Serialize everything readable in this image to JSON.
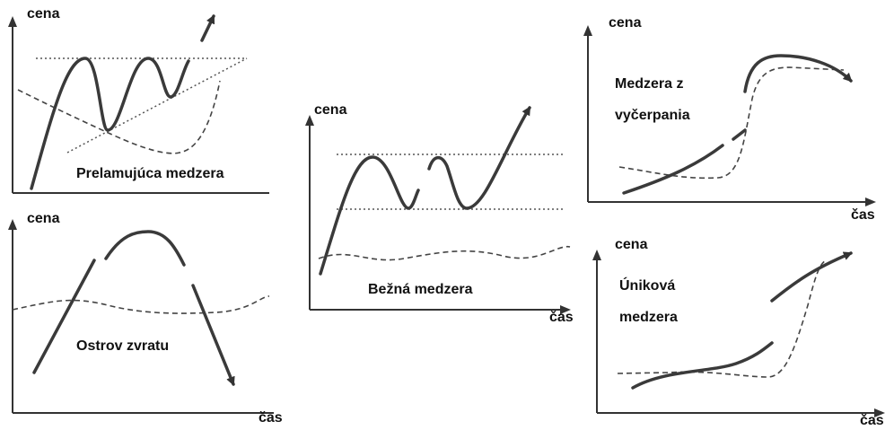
{
  "panels": [
    {
      "y_label": "cena",
      "title_lines": [
        "Prelamujúca medzera"
      ]
    },
    {
      "y_label": "cena",
      "x_label": "čas",
      "title_lines": [
        "Ostrov zvratu"
      ]
    },
    {
      "y_label": "cena",
      "x_label": "čas",
      "title_lines": [
        "Bežná medzera"
      ]
    },
    {
      "y_label": "cena",
      "x_label": "čas",
      "title_lines": [
        "Medzera z",
        "vyčerpania"
      ]
    },
    {
      "y_label": "cena",
      "x_label": "čas",
      "title_lines": [
        "Úniková",
        "medzera"
      ]
    }
  ]
}
